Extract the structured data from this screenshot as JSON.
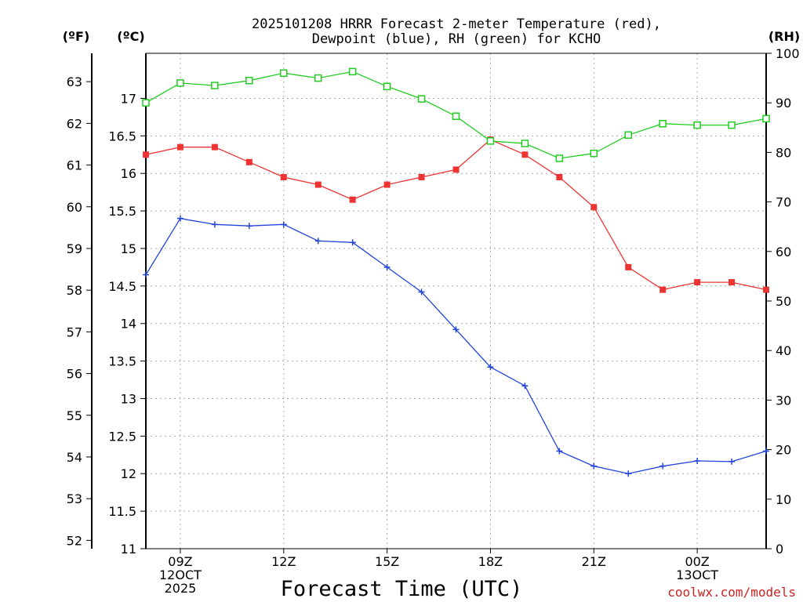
{
  "chart_data": {
    "type": "line",
    "title_line1": "2025101208 HRRR Forecast 2-meter Temperature (red),",
    "title_line2": "Dewpoint (blue), RH (green) for KCHO",
    "xlabel": "Forecast Time (UTC)",
    "credit": "coolwx.com/models",
    "unit_f": "(ºF)",
    "unit_c": "(ºC)",
    "unit_rh": "(RH)",
    "x_hours": [
      8,
      9,
      10,
      11,
      12,
      13,
      14,
      15,
      16,
      17,
      18,
      19,
      20,
      21,
      22,
      23,
      24,
      25,
      26
    ],
    "x_range": [
      8,
      26
    ],
    "x_ticks": [
      {
        "h": 9,
        "lines": [
          "09Z",
          "12OCT",
          "2025"
        ]
      },
      {
        "h": 12,
        "lines": [
          "12Z"
        ]
      },
      {
        "h": 15,
        "lines": [
          "15Z"
        ]
      },
      {
        "h": 18,
        "lines": [
          "18Z"
        ]
      },
      {
        "h": 21,
        "lines": [
          "21Z"
        ]
      },
      {
        "h": 24,
        "lines": [
          "00Z",
          "13OCT"
        ]
      }
    ],
    "celsius_range": [
      11,
      17.6
    ],
    "celsius_ticks": [
      "11",
      "11.5",
      "12",
      "12.5",
      "13",
      "13.5",
      "14",
      "14.5",
      "15",
      "15.5",
      "16",
      "16.5",
      "17"
    ],
    "fahrenheit_ticks": [
      "52",
      "53",
      "54",
      "55",
      "56",
      "57",
      "58",
      "59",
      "60",
      "61",
      "62",
      "63"
    ],
    "rh_range": [
      0,
      100
    ],
    "rh_ticks": [
      "0",
      "10",
      "20",
      "30",
      "40",
      "50",
      "60",
      "70",
      "80",
      "90",
      "100"
    ],
    "series": [
      {
        "name": "Temperature",
        "color": "#ee3333",
        "marker": "filled-square",
        "values_c": [
          16.25,
          16.35,
          16.35,
          16.15,
          15.95,
          15.85,
          15.65,
          15.85,
          15.95,
          16.05,
          16.45,
          16.25,
          15.95,
          15.55,
          14.75,
          14.45,
          14.55,
          14.55,
          14.45
        ]
      },
      {
        "name": "Dewpoint",
        "color": "#2244dd",
        "marker": "plus",
        "values_c": [
          14.65,
          15.4,
          15.32,
          15.3,
          15.32,
          15.1,
          15.08,
          14.75,
          14.42,
          13.92,
          13.42,
          13.17,
          12.3,
          12.1,
          12.0,
          12.1,
          12.17,
          12.16,
          12.3
        ]
      },
      {
        "name": "RH",
        "color": "#22cc22",
        "marker": "open-square",
        "values_rh": [
          90,
          94,
          93.5,
          94.5,
          96,
          95,
          96.3,
          93.3,
          90.8,
          87.3,
          82.3,
          81.8,
          78.8,
          79.8,
          83.5,
          85.8,
          85.5,
          85.5,
          86.8
        ]
      }
    ]
  }
}
